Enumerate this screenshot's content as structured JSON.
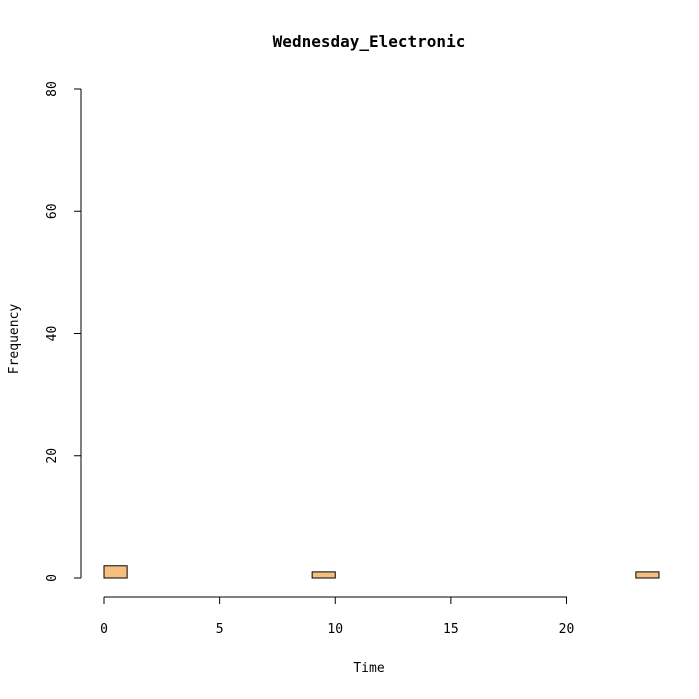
{
  "chart_data": {
    "type": "bar",
    "title": "Wednesday_Electronic",
    "xlabel": "Time",
    "ylabel": "Frequency",
    "xlim": [
      0,
      24
    ],
    "ylim": [
      0,
      80
    ],
    "x_ticks": [
      0,
      5,
      10,
      15,
      20
    ],
    "y_ticks": [
      0,
      20,
      40,
      60,
      80
    ],
    "bin_width": 1,
    "bins": [
      {
        "start": 0,
        "end": 1,
        "count": 2
      },
      {
        "start": 1,
        "end": 2,
        "count": 0
      },
      {
        "start": 2,
        "end": 3,
        "count": 0
      },
      {
        "start": 3,
        "end": 4,
        "count": 0
      },
      {
        "start": 4,
        "end": 5,
        "count": 0
      },
      {
        "start": 5,
        "end": 6,
        "count": 0
      },
      {
        "start": 6,
        "end": 7,
        "count": 0
      },
      {
        "start": 7,
        "end": 8,
        "count": 0
      },
      {
        "start": 8,
        "end": 9,
        "count": 0
      },
      {
        "start": 9,
        "end": 10,
        "count": 1
      },
      {
        "start": 10,
        "end": 11,
        "count": 0
      },
      {
        "start": 11,
        "end": 12,
        "count": 0
      },
      {
        "start": 12,
        "end": 13,
        "count": 0
      },
      {
        "start": 13,
        "end": 14,
        "count": 0
      },
      {
        "start": 14,
        "end": 15,
        "count": 0
      },
      {
        "start": 15,
        "end": 16,
        "count": 0
      },
      {
        "start": 16,
        "end": 17,
        "count": 0
      },
      {
        "start": 17,
        "end": 18,
        "count": 0
      },
      {
        "start": 18,
        "end": 19,
        "count": 0
      },
      {
        "start": 19,
        "end": 20,
        "count": 0
      },
      {
        "start": 20,
        "end": 21,
        "count": 0
      },
      {
        "start": 21,
        "end": 22,
        "count": 0
      },
      {
        "start": 22,
        "end": 23,
        "count": 0
      },
      {
        "start": 23,
        "end": 24,
        "count": 1
      }
    ],
    "bar_color": "#F5C07F",
    "grid": false,
    "legend": "none"
  }
}
